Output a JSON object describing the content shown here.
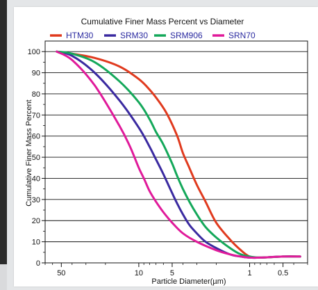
{
  "chart_data": {
    "type": "line",
    "title": "Cumulative Finer Mass Percent vs Diameter",
    "xlabel": "Particle Diameter(µm)",
    "ylabel": "Cumulative Finer Mass Percent",
    "x_scale": "log",
    "x_reversed": true,
    "xlim": [
      70,
      0.3
    ],
    "ylim": [
      0,
      105
    ],
    "x_ticks": [
      50,
      10,
      5,
      1,
      0.5
    ],
    "x_tick_labels": [
      "50",
      "10",
      "5",
      "1",
      "0.5"
    ],
    "y_ticks": [
      0,
      10,
      20,
      30,
      40,
      50,
      60,
      70,
      80,
      90,
      100
    ],
    "y_tick_labels": [
      "0",
      "10",
      "20",
      "30",
      "40",
      "50",
      "60",
      "70",
      "80",
      "90",
      "100"
    ],
    "grid": "horizontal",
    "legend_position": "top",
    "series": [
      {
        "name": "HTM30",
        "color": "#e03a1e",
        "x": [
          55,
          40,
          25,
          15,
          10,
          8,
          6.5,
          5.5,
          4.5,
          4,
          3.5,
          3,
          2.5,
          2,
          1.5,
          1.2,
          1,
          0.8,
          0.5,
          0.35
        ],
        "y": [
          100,
          99,
          97,
          93,
          87,
          82,
          76,
          70,
          60,
          52,
          45,
          37,
          29,
          19,
          11,
          6,
          3,
          2.5,
          3,
          3
        ]
      },
      {
        "name": "SRM30",
        "color": "#3a2aa0",
        "x": [
          55,
          40,
          25,
          15,
          10,
          8,
          7,
          6,
          5,
          4.5,
          4,
          3.5,
          3,
          2.5,
          2,
          1.5,
          1.2,
          1,
          0.8,
          0.5,
          0.35
        ],
        "y": [
          100,
          98,
          90,
          77,
          64,
          55,
          49,
          42,
          33,
          28,
          23,
          18,
          14,
          10,
          7,
          4,
          3,
          2.5,
          2.5,
          3,
          3
        ]
      },
      {
        "name": "SRM906",
        "color": "#14a85a",
        "x": [
          55,
          40,
          25,
          15,
          10,
          8,
          7,
          6,
          5,
          4.5,
          4,
          3.5,
          3,
          2.5,
          2,
          1.5,
          1.2,
          1,
          0.8,
          0.5,
          0.35
        ],
        "y": [
          100,
          99,
          95,
          86,
          76,
          68,
          62,
          56,
          47,
          41,
          35,
          29,
          23,
          17,
          12,
          7,
          4,
          3,
          2.5,
          3,
          3
        ]
      },
      {
        "name": "SRN70",
        "color": "#e01a9a",
        "x": [
          55,
          40,
          25,
          15,
          12,
          10,
          9,
          8,
          7,
          6,
          5,
          4,
          3,
          2,
          1.5,
          1.2,
          1,
          0.8,
          0.5,
          0.35
        ],
        "y": [
          100,
          96,
          84,
          65,
          55,
          45,
          40,
          34,
          29,
          24,
          19,
          14,
          10,
          6,
          4,
          3,
          2.5,
          2.5,
          3,
          3
        ]
      }
    ]
  }
}
